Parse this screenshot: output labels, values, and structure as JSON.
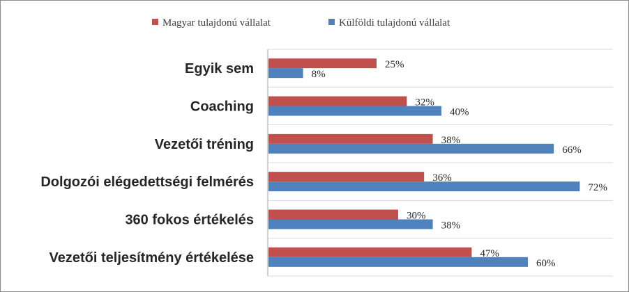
{
  "chart_data": {
    "type": "bar",
    "orientation": "horizontal",
    "categories": [
      "Egyik sem",
      "Coaching",
      "Vezetői tréning",
      "Dolgozói elégedettségi felmérés",
      "360 fokos értékelés",
      "Vezetői teljesítmény értékelése"
    ],
    "series": [
      {
        "name": "Magyar tulajdonú vállalat",
        "color": "#C0504D",
        "values": [
          25,
          32,
          38,
          36,
          30,
          47
        ],
        "labels": [
          "25%",
          "32%",
          "38%",
          "36%",
          "30%",
          "47%"
        ]
      },
      {
        "name": "Külföldi tulajdonú vállalat",
        "color": "#4F81BD",
        "values": [
          8,
          40,
          66,
          72,
          38,
          60
        ],
        "labels": [
          "8%",
          "40%",
          "66%",
          "72%",
          "38%",
          "60%"
        ]
      }
    ],
    "xlim": [
      0,
      80
    ],
    "grid": true,
    "legend_position": "top"
  }
}
